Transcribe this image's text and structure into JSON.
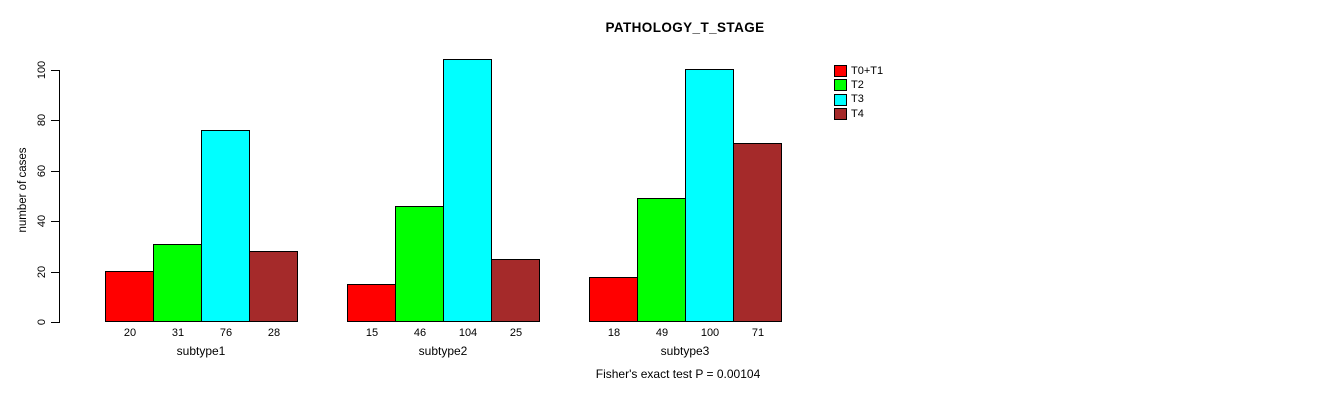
{
  "title": "PATHOLOGY_T_STAGE",
  "chart_data": {
    "type": "bar",
    "grouped": true,
    "categories": [
      "subtype1",
      "subtype2",
      "subtype3"
    ],
    "series": [
      {
        "name": "T0+T1",
        "color": "#FF0000",
        "values": [
          20,
          15,
          18
        ]
      },
      {
        "name": "T2",
        "color": "#00FF00",
        "values": [
          31,
          46,
          49
        ]
      },
      {
        "name": "T3",
        "color": "#00FFFF",
        "values": [
          76,
          104,
          100
        ]
      },
      {
        "name": "T4",
        "color": "#A52A2A",
        "values": [
          28,
          25,
          71
        ]
      }
    ],
    "title": "PATHOLOGY_T_STAGE",
    "xlabel": "",
    "ylabel": "number of cases",
    "yticks": [
      0,
      20,
      40,
      60,
      80,
      100
    ],
    "ylim": [
      0,
      100
    ],
    "grid": false,
    "legend_position": "right",
    "bar_value_labels_shown": true,
    "caption": "Fisher's exact test P = 0.00104"
  }
}
